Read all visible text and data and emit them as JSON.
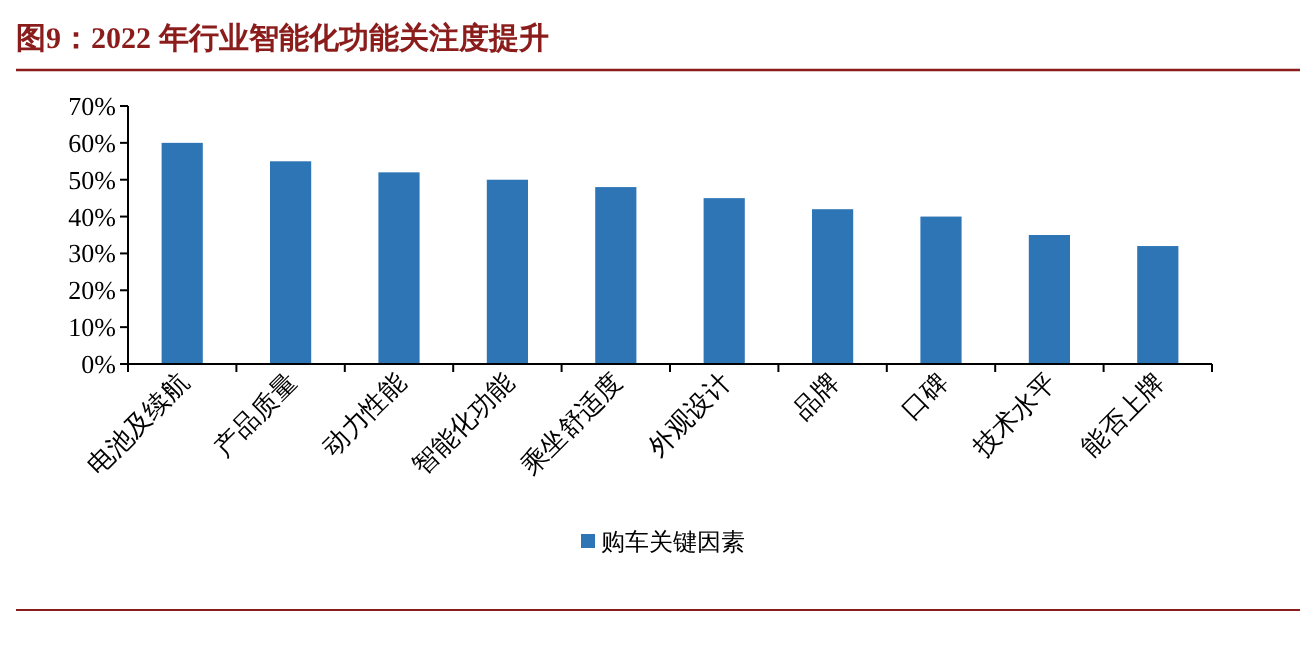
{
  "chart_data": {
    "type": "bar",
    "title": "图9：2022 年行业智能化功能关注度提升",
    "categories": [
      "电池及续航",
      "产品质量",
      "动力性能",
      "智能化功能",
      "乘坐舒适度",
      "外观设计",
      "品牌",
      "口碑",
      "技术水平",
      "能否上牌"
    ],
    "series": [
      {
        "name": "购车关键因素",
        "color": "#2e75b6",
        "values": [
          60,
          55,
          52,
          50,
          48,
          45,
          42,
          40,
          35,
          32
        ]
      }
    ],
    "ylim": [
      0,
      70
    ],
    "yticks": [
      {
        "value": 0,
        "label": "0%"
      },
      {
        "value": 10,
        "label": "10%"
      },
      {
        "value": 20,
        "label": "20%"
      },
      {
        "value": 30,
        "label": "30%"
      },
      {
        "value": 40,
        "label": "40%"
      },
      {
        "value": 50,
        "label": "50%"
      },
      {
        "value": 60,
        "label": "60%"
      },
      {
        "value": 70,
        "label": "70%"
      }
    ],
    "legend": "bottom",
    "grid": false
  }
}
